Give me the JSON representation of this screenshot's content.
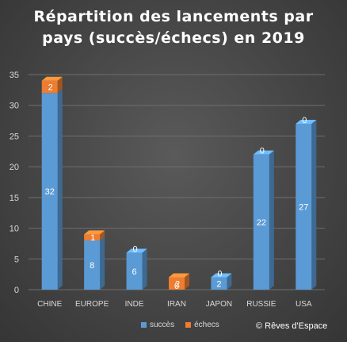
{
  "chart_data": {
    "type": "bar",
    "stacked": true,
    "title_lines": [
      "Répartition  des lancements  par",
      "pays  (succès/échecs)  en 2019"
    ],
    "categories": [
      "CHINE",
      "EUROPE",
      "INDE",
      "IRAN",
      "JAPON",
      "RUSSIE",
      "USA"
    ],
    "series": [
      {
        "name": "succès",
        "values": [
          32,
          8,
          6,
          0,
          2,
          22,
          27
        ],
        "color": "#5b9bd5"
      },
      {
        "name": "échecs",
        "values": [
          2,
          1,
          0,
          2,
          0,
          0,
          0
        ],
        "color": "#ed7d31"
      }
    ],
    "ylim": [
      0,
      35
    ],
    "yticks": [
      0,
      5,
      10,
      15,
      20,
      25,
      30,
      35
    ],
    "grid": true,
    "legend": "bottom",
    "credit": "© Rêves d'Espace"
  }
}
